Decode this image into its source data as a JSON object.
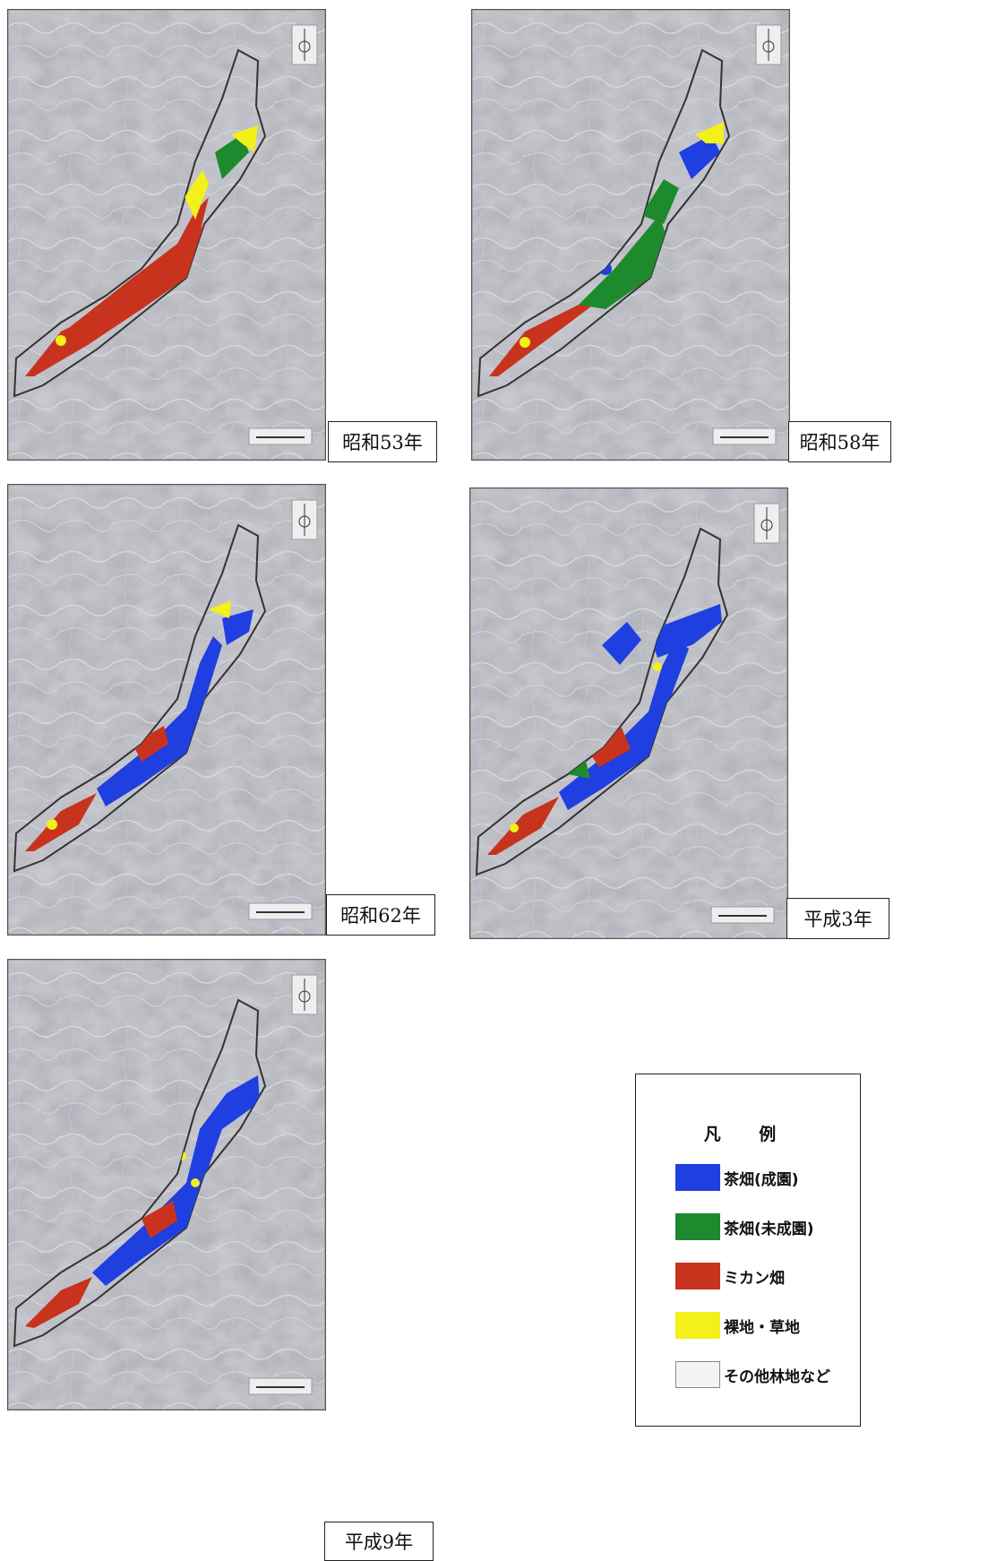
{
  "panels": [
    {
      "id": "p1",
      "year_label": "昭和53年"
    },
    {
      "id": "p2",
      "year_label": "昭和58年"
    },
    {
      "id": "p3",
      "year_label": "昭和62年"
    },
    {
      "id": "p4",
      "year_label": "平成3年"
    },
    {
      "id": "p5",
      "year_label": "平成9年"
    }
  ],
  "legend": {
    "title": "凡 例",
    "items": [
      {
        "label": "茶畑(成園)",
        "color": "#1f3fe0"
      },
      {
        "label": "茶畑(未成園)",
        "color": "#1e8a2e"
      },
      {
        "label": "ミカン畑",
        "color": "#c8331e"
      },
      {
        "label": "裸地・草地",
        "color": "#f3f01a"
      },
      {
        "label": "その他林地など",
        "color": "#f4f4f4"
      }
    ]
  },
  "colors": {
    "tea_mature": "#1f3fe0",
    "tea_immature": "#1e8a2e",
    "mikan": "#c8331e",
    "bare_grass": "#f3f01a",
    "other_forest": "#f4f4f4",
    "map_base": "#a9a9b2",
    "boundary": "#333333"
  }
}
